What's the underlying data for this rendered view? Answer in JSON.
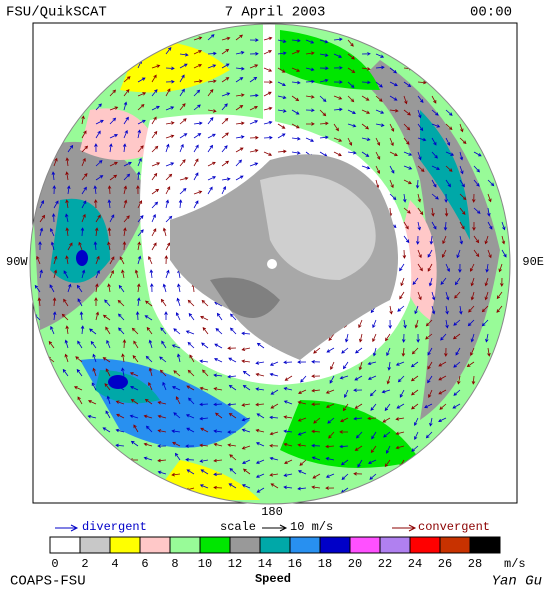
{
  "header": {
    "left": "FSU/QuikSCAT",
    "date": "7 April 2003",
    "time": "00:00"
  },
  "map_labels": {
    "west": "90W",
    "east": "90E",
    "south": "180"
  },
  "legend": {
    "divergent": "divergent",
    "scale": "scale",
    "scale_value": "10 m/s",
    "convergent": "convergent"
  },
  "colorbar": {
    "ticks": [
      0,
      2,
      4,
      6,
      8,
      10,
      12,
      14,
      16,
      18,
      20,
      22,
      24,
      26,
      28
    ],
    "colors": [
      "#ffffff",
      "#c8c8c8",
      "#ffff00",
      "#ffc8c8",
      "#98fb98",
      "#00e600",
      "#999999",
      "#00a8a8",
      "#2890f0",
      "#0000c8",
      "#ff50ff",
      "#b080f0",
      "#ff0000",
      "#c83200",
      "#000000"
    ],
    "unit": "m/s",
    "title": "Speed"
  },
  "footer": {
    "left": "COAPS-FSU",
    "right": "Yan Gu"
  }
}
